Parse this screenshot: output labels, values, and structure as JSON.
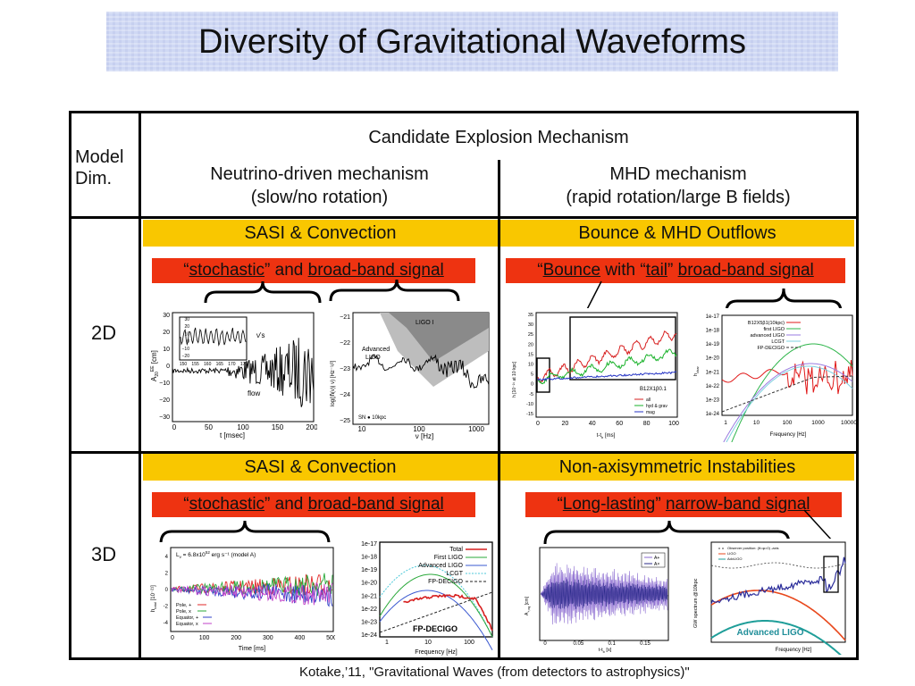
{
  "slide": {
    "title": "Diversity of Gravitational Waveforms",
    "citation": "Kotake,’11, \"Gravitational Waves (from detectors to astrophysics)\""
  },
  "table": {
    "corner_label": "Model\nDim.",
    "super_header": "Candidate Explosion Mechanism",
    "col1_header_l1": "Neutrino-driven mechanism",
    "col1_header_l2": "(slow/no rotation)",
    "col2_header_l1": "MHD mechanism",
    "col2_header_l2": "(rapid rotation/large B fields)",
    "rows": [
      {
        "label": "2D",
        "left_band": "SASI & Convection",
        "right_band": "Bounce  & MHD Outflows",
        "left_signal": {
          "q1": "stochastic",
          "mid": " and ",
          "q2": "broad-band signal"
        },
        "right_signal": {
          "p1": "Bounce",
          "mid1": " with “",
          "p2": "tail",
          "mid2": "” ",
          "p3": "broad-band signal"
        }
      },
      {
        "label": "3D",
        "left_band": "SASI & Convection",
        "right_band": "Non-axisymmetric Instabilities",
        "left_signal": {
          "q1": "stochastic",
          "mid": " and ",
          "q2": "broad-band signal"
        },
        "right_signal": {
          "q1": "Long-lasting",
          "mid": " ",
          "q2": "narrow-band signal"
        }
      }
    ]
  },
  "plots": {
    "p2d_wave": {
      "ylabel": "A",
      "ylabel_sub": "20",
      "ylabel_sup": "EE",
      "ylabel_unit": " [cm]",
      "xlabel": "t [msec]",
      "xticks": [
        "0",
        "50",
        "100",
        "150",
        "200"
      ],
      "yticks": [
        "30",
        "20",
        "10",
        "0",
        "−10",
        "−20",
        "−30"
      ],
      "inset_xticks": [
        "150",
        "155",
        "160",
        "165",
        "170",
        "175"
      ],
      "inset_yticks": [
        "30",
        "20",
        "10",
        "0",
        "−10",
        "−20"
      ],
      "ann_nu": "ν's",
      "ann_flow": "flow"
    },
    "p2d_spec": {
      "ylabel": "log(|h̃(ν)| ν",
      "ylabel_unit": ") [Hz⁻¹/²]",
      "xlabel": "ν [Hz]",
      "xticks": [
        "10",
        "100",
        "1000"
      ],
      "yticks": [
        "−21",
        "−22",
        "−23",
        "−24",
        "−25"
      ],
      "ligo1": "LIGO I",
      "adv1": "Advanced",
      "adv2": "LIGO",
      "sn": "SN ● 10kpc"
    },
    "p2d_mhd": {
      "ylabel": "h [10⁻²¹ at 10 kpc]",
      "xlabel": "t-t",
      "xlabel_sub": "b",
      "xlabel_unit": " [ms]",
      "xticks": [
        "0",
        "20",
        "40",
        "60",
        "80",
        "100"
      ],
      "yticks": [
        "35",
        "30",
        "25",
        "20",
        "15",
        "10",
        "5",
        "0",
        "-5",
        "-10",
        "-15"
      ],
      "model": "B12X1β0.1",
      "legend": [
        "all",
        "hyd & grav",
        "mag"
      ]
    },
    "p2d_mhd_spec": {
      "ylabel": "h",
      "ylabel_sub": "char",
      "xlabel": "Frequency [Hz]",
      "xticks": [
        "1",
        "10",
        "100",
        "1000",
        "10000"
      ],
      "yticks": [
        "1e-17",
        "1e-18",
        "1e-19",
        "1e-20",
        "1e-21",
        "1e-22",
        "1e-23",
        "1e-24"
      ],
      "legend": [
        "B12X5β1(10kpc)",
        "first LIGO",
        "advanced LIGO",
        "LCGT",
        "FP-DECIGO"
      ]
    },
    "p3d_wave": {
      "ylabel": "h",
      "ylabel_sub": "total",
      "ylabel_unit": " [10⁻²¹]",
      "xlabel": "Time [ms]",
      "xticks": [
        "0",
        "100",
        "200",
        "300",
        "400",
        "500"
      ],
      "yticks": [
        "4",
        "2",
        "0",
        "-2",
        "-4"
      ],
      "lum": "L",
      "lum_sub": "ν",
      "lum_eq": " = 6.8x10",
      "lum_sup": "52",
      "lum_rest": " erg s⁻¹ (model A)",
      "legend": [
        "Pole, +",
        "Pole, x",
        "Equator, +",
        "Equator, x"
      ]
    },
    "p3d_spec": {
      "xlabel": "Frequency [Hz]",
      "xticks": [
        "1",
        "10",
        "100"
      ],
      "yticks": [
        "1e-17",
        "1e-18",
        "1e-19",
        "1e-20",
        "1e-21",
        "1e-22",
        "1e-23",
        "1e-24"
      ],
      "legend": [
        "Total",
        "First LIGO",
        "Advanced LIGO",
        "LCGT",
        "FP-DECIGO"
      ],
      "fp_label": "FP-DECIGO"
    },
    "p3d_long": {
      "ylabel": "A",
      "ylabel_sub": "+,eq",
      "ylabel_unit": " [cm]",
      "xlabel": "t-t",
      "xlabel_sub": "b",
      "xlabel_unit": " [s]",
      "xticks": [
        "0",
        "0.05",
        "0.1",
        "0.15"
      ],
      "legend": [
        "A+",
        "A×"
      ]
    },
    "p3d_long_spec": {
      "ylabel": "GW spectrum @10kpc",
      "xlabel": "Frequency [Hz]",
      "legend": [
        "Observer position: (θ=φ=0) -axis",
        "LIGO",
        "AdvLIGO"
      ],
      "adv_label": "Advanced LIGO"
    }
  },
  "colors": {
    "band_yellow": "#f9c700",
    "label_red": "#ee3311",
    "title_bg": "#cfd8f4"
  }
}
